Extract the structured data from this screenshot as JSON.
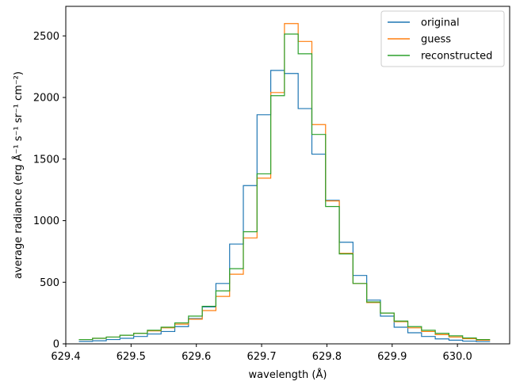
{
  "chart_data": {
    "type": "line",
    "style": "step",
    "xlabel": "wavelength (Å)",
    "ylabel": "average radiance (erg Å⁻¹ s⁻¹ sr⁻¹ cm⁻²)",
    "xlim": [
      629.4,
      630.08
    ],
    "ylim": [
      0,
      2740
    ],
    "xticks": [
      629.4,
      629.5,
      629.6,
      629.7,
      629.8,
      629.9,
      630.0
    ],
    "xtick_labels": [
      "629.4",
      "629.5",
      "629.6",
      "629.7",
      "629.8",
      "629.9",
      "630.0"
    ],
    "yticks": [
      0,
      500,
      1000,
      1500,
      2000,
      2500
    ],
    "ytick_labels": [
      "0",
      "500",
      "1000",
      "1500",
      "2000",
      "2500"
    ],
    "grid": false,
    "legend_position": "top-right",
    "bin_edges": [
      629.42,
      629.441,
      629.462,
      629.483,
      629.504,
      629.525,
      629.546,
      629.567,
      629.588,
      629.609,
      629.63,
      629.651,
      629.672,
      629.693,
      629.714,
      629.735,
      629.756,
      629.777,
      629.798,
      629.819,
      629.84,
      629.861,
      629.882,
      629.903,
      629.924,
      629.945,
      629.966,
      629.987,
      630.008,
      630.029,
      630.05
    ],
    "series": [
      {
        "name": "original",
        "color": "#1f77b4",
        "values": [
          20,
          25,
          35,
          45,
          60,
          80,
          100,
          140,
          205,
          300,
          490,
          810,
          1285,
          1860,
          2220,
          2195,
          1910,
          1540,
          1165,
          825,
          555,
          355,
          225,
          135,
          90,
          60,
          40,
          30,
          22,
          18
        ]
      },
      {
        "name": "guess",
        "color": "#ff7f0e",
        "values": [
          35,
          45,
          55,
          70,
          85,
          105,
          130,
          160,
          200,
          270,
          385,
          565,
          860,
          1345,
          2040,
          2600,
          2455,
          1780,
          1160,
          735,
          490,
          335,
          250,
          180,
          130,
          100,
          75,
          55,
          42,
          30
        ]
      },
      {
        "name": "reconstructed",
        "color": "#2ca02c",
        "values": [
          35,
          45,
          55,
          70,
          85,
          110,
          135,
          170,
          225,
          305,
          430,
          610,
          910,
          1380,
          2015,
          2515,
          2355,
          1700,
          1115,
          730,
          490,
          340,
          250,
          185,
          140,
          110,
          85,
          65,
          48,
          35
        ]
      }
    ]
  }
}
